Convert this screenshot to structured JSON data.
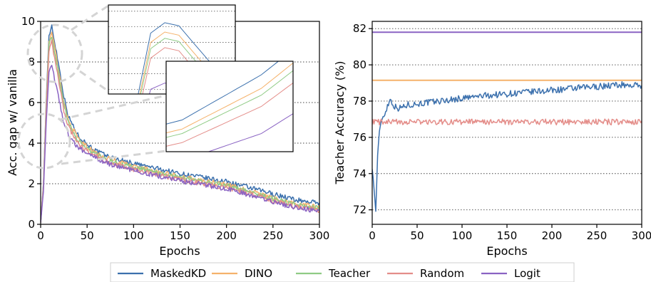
{
  "colors": {
    "MaskedKD": "#3b70ad",
    "DINO": "#f5b26b",
    "Teacher": "#8fcb85",
    "Random": "#e48d89",
    "Logit": "#8a63c3",
    "grid": "#444444",
    "magnifier": "#d4d4d4"
  },
  "legend": [
    "MaskedKD",
    "DINO",
    "Teacher",
    "Random",
    "Logit"
  ],
  "chart_data": [
    {
      "type": "line",
      "xlabel": "Epochs",
      "ylabel": "Acc. gap w/ vanilla",
      "xlim": [
        0,
        300
      ],
      "ylim": [
        0,
        10
      ],
      "xticks": [
        0,
        50,
        100,
        150,
        200,
        250,
        300
      ],
      "yticks": [
        0,
        2,
        4,
        6,
        8,
        10
      ],
      "grid": "horizontal dotted",
      "series": [
        {
          "name": "MaskedKD",
          "x": [
            0,
            3,
            6,
            9,
            12,
            15,
            20,
            25,
            30,
            40,
            50,
            60,
            75,
            100,
            125,
            150,
            175,
            200,
            225,
            250,
            275,
            300
          ],
          "y": [
            0.1,
            2.0,
            6.0,
            9.3,
            9.8,
            9.0,
            7.7,
            6.3,
            5.3,
            4.4,
            3.95,
            3.6,
            3.3,
            3.0,
            2.75,
            2.5,
            2.3,
            2.1,
            1.8,
            1.5,
            1.2,
            1.05
          ]
        },
        {
          "name": "DINO",
          "x": [
            0,
            3,
            6,
            9,
            12,
            15,
            20,
            25,
            30,
            40,
            50,
            60,
            75,
            100,
            125,
            150,
            175,
            200,
            225,
            250,
            275,
            300
          ],
          "y": [
            0.1,
            1.9,
            5.8,
            9.0,
            9.5,
            8.7,
            7.4,
            6.0,
            5.1,
            4.25,
            3.8,
            3.5,
            3.2,
            2.85,
            2.6,
            2.35,
            2.15,
            1.95,
            1.65,
            1.3,
            1.0,
            0.85
          ]
        },
        {
          "name": "Teacher",
          "x": [
            0,
            3,
            6,
            9,
            12,
            15,
            20,
            25,
            30,
            40,
            50,
            60,
            75,
            100,
            125,
            150,
            175,
            200,
            225,
            250,
            275,
            300
          ],
          "y": [
            0.1,
            1.85,
            5.7,
            8.8,
            9.3,
            8.5,
            7.2,
            5.85,
            5.0,
            4.15,
            3.7,
            3.45,
            3.1,
            2.8,
            2.55,
            2.3,
            2.1,
            1.9,
            1.6,
            1.25,
            0.95,
            0.8
          ]
        },
        {
          "name": "Random",
          "x": [
            0,
            3,
            6,
            9,
            12,
            15,
            20,
            25,
            30,
            40,
            50,
            60,
            75,
            100,
            125,
            150,
            175,
            200,
            225,
            250,
            275,
            300
          ],
          "y": [
            0.1,
            1.8,
            5.5,
            8.5,
            9.0,
            8.2,
            6.9,
            5.6,
            4.8,
            4.0,
            3.6,
            3.35,
            3.0,
            2.7,
            2.45,
            2.2,
            2.0,
            1.8,
            1.5,
            1.15,
            0.85,
            0.7
          ]
        },
        {
          "name": "Logit",
          "x": [
            0,
            3,
            6,
            9,
            12,
            15,
            20,
            25,
            30,
            40,
            50,
            60,
            75,
            100,
            125,
            150,
            175,
            200,
            225,
            250,
            275,
            300
          ],
          "y": [
            0.1,
            1.6,
            5.0,
            7.5,
            7.8,
            7.2,
            6.1,
            5.0,
            4.4,
            3.8,
            3.5,
            3.25,
            2.95,
            2.65,
            2.4,
            2.15,
            1.95,
            1.75,
            1.45,
            1.1,
            0.8,
            0.65
          ]
        }
      ]
    },
    {
      "type": "line",
      "xlabel": "Epochs",
      "ylabel": "Teacher Accuracy (%)",
      "xlim": [
        0,
        300
      ],
      "ylim": [
        71.2,
        82.4
      ],
      "xticks": [
        0,
        50,
        100,
        150,
        200,
        250,
        300
      ],
      "yticks": [
        72,
        74,
        76,
        78,
        80,
        82
      ],
      "grid": "horizontal dotted",
      "series": [
        {
          "name": "MaskedKD",
          "x": [
            0,
            2,
            4,
            6,
            8,
            10,
            13,
            16,
            20,
            25,
            30,
            40,
            50,
            75,
            100,
            125,
            150,
            175,
            200,
            225,
            250,
            275,
            300
          ],
          "y": [
            74.3,
            73.2,
            71.9,
            75.0,
            76.3,
            76.9,
            77.2,
            77.6,
            78.1,
            77.7,
            77.6,
            77.8,
            77.85,
            78.0,
            78.15,
            78.3,
            78.4,
            78.5,
            78.6,
            78.7,
            78.8,
            78.9,
            78.85
          ]
        },
        {
          "name": "DINO",
          "x": [
            0,
            300
          ],
          "y": [
            79.15,
            79.15
          ]
        },
        {
          "name": "Random",
          "x": [
            0,
            50,
            100,
            150,
            200,
            250,
            300
          ],
          "y": [
            76.85,
            76.85,
            76.85,
            76.85,
            76.85,
            76.85,
            76.85
          ]
        },
        {
          "name": "Logit",
          "x": [
            0,
            300
          ],
          "y": [
            81.8,
            81.8
          ]
        }
      ]
    }
  ]
}
